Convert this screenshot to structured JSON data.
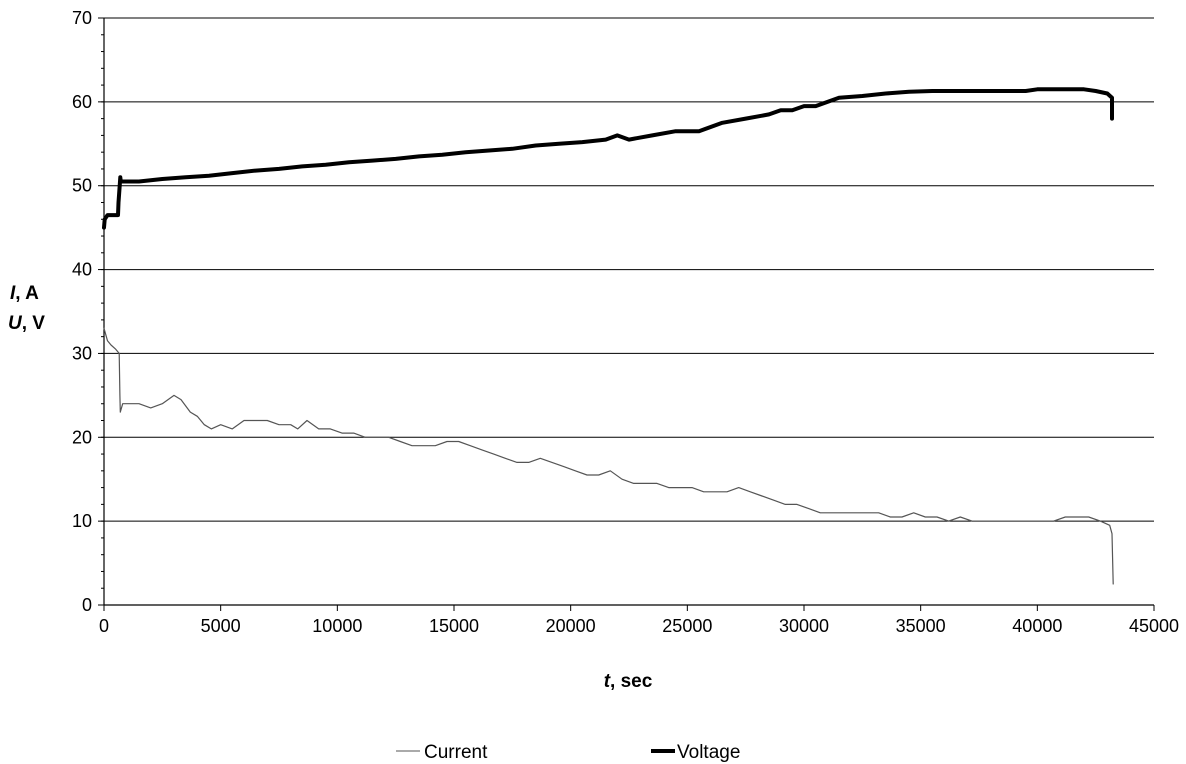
{
  "chart_data": {
    "type": "line",
    "title": "",
    "xlabel": {
      "var": "t",
      "unit": ", sec"
    },
    "ylabel": [
      {
        "var": "I",
        "unit": ", A"
      },
      {
        "var": "U",
        "unit": ", V"
      }
    ],
    "xlim": [
      0,
      45000
    ],
    "ylim": [
      0,
      70
    ],
    "xticks": [
      0,
      5000,
      10000,
      15000,
      20000,
      25000,
      30000,
      35000,
      40000,
      45000
    ],
    "yticks": [
      0,
      10,
      20,
      30,
      40,
      50,
      60,
      70
    ],
    "grid": "horizontal major gridlines",
    "legend_position": "bottom",
    "series": [
      {
        "name": "Current",
        "color": "#555555",
        "style": "thin",
        "x": [
          0,
          150,
          300,
          500,
          650,
          680,
          700,
          800,
          1000,
          1500,
          2000,
          2500,
          3000,
          3300,
          3700,
          4000,
          4300,
          4600,
          5000,
          5500,
          6000,
          6500,
          7000,
          7500,
          8000,
          8300,
          8700,
          9200,
          9700,
          10200,
          10700,
          11200,
          11700,
          12200,
          12700,
          13200,
          13700,
          14200,
          14700,
          15200,
          15700,
          16200,
          16700,
          17200,
          17700,
          18200,
          18700,
          19200,
          19700,
          20200,
          20700,
          21200,
          21700,
          22200,
          22700,
          23200,
          23700,
          24200,
          24700,
          25200,
          25700,
          26200,
          26700,
          27200,
          27700,
          28200,
          28700,
          29200,
          29700,
          30200,
          30700,
          31200,
          31700,
          32200,
          32700,
          33200,
          33700,
          34200,
          34700,
          35200,
          35700,
          36200,
          36700,
          37200,
          37700,
          38200,
          38700,
          39200,
          39700,
          40200,
          40700,
          41200,
          41700,
          42200,
          42700,
          43100,
          43200,
          43250
        ],
        "y": [
          33,
          31.5,
          31,
          30.5,
          30,
          25,
          23,
          24,
          24,
          24,
          23.5,
          24,
          25,
          24.5,
          23,
          22.5,
          21.5,
          21,
          21.5,
          21,
          22,
          22,
          22,
          21.5,
          21.5,
          21,
          22,
          21,
          21,
          20.5,
          20.5,
          20,
          20,
          20,
          19.5,
          19,
          19,
          19,
          19.5,
          19.5,
          19,
          18.5,
          18,
          17.5,
          17,
          17,
          17.5,
          17,
          16.5,
          16,
          15.5,
          15.5,
          16,
          15,
          14.5,
          14.5,
          14.5,
          14,
          14,
          14,
          13.5,
          13.5,
          13.5,
          14,
          13.5,
          13,
          12.5,
          12,
          12,
          11.5,
          11,
          11,
          11,
          11,
          11,
          11,
          10.5,
          10.5,
          11,
          10.5,
          10.5,
          10,
          10.5,
          10,
          10,
          10,
          10,
          10,
          10,
          10,
          10,
          10.5,
          10.5,
          10.5,
          10,
          9.5,
          8.5,
          2.5
        ]
      },
      {
        "name": "Voltage",
        "color": "#000000",
        "style": "thick",
        "x": [
          0,
          30,
          150,
          300,
          600,
          620,
          700,
          720,
          800,
          1500,
          2500,
          3500,
          4500,
          5500,
          6500,
          7500,
          8500,
          9500,
          10500,
          11500,
          12500,
          13500,
          14500,
          15500,
          16500,
          17500,
          18500,
          19500,
          20500,
          21500,
          22000,
          22500,
          23500,
          24500,
          25500,
          26500,
          27500,
          28500,
          29000,
          29500,
          30000,
          30500,
          31500,
          32500,
          33500,
          34500,
          35500,
          36500,
          37500,
          38500,
          39500,
          40000,
          40500,
          41000,
          41500,
          42000,
          42500,
          43000,
          43200,
          43200
        ],
        "y": [
          45,
          46,
          46.5,
          46.5,
          46.5,
          48,
          51,
          50.5,
          50.5,
          50.5,
          50.8,
          51,
          51.2,
          51.5,
          51.8,
          52,
          52.3,
          52.5,
          52.8,
          53,
          53.2,
          53.5,
          53.7,
          54,
          54.2,
          54.4,
          54.8,
          55,
          55.2,
          55.5,
          56,
          55.5,
          56,
          56.5,
          56.5,
          57.5,
          58,
          58.5,
          59,
          59,
          59.5,
          59.5,
          60.5,
          60.7,
          61,
          61.2,
          61.3,
          61.3,
          61.3,
          61.3,
          61.3,
          61.5,
          61.5,
          61.5,
          61.5,
          61.5,
          61.3,
          61,
          60.5,
          58
        ]
      }
    ]
  }
}
